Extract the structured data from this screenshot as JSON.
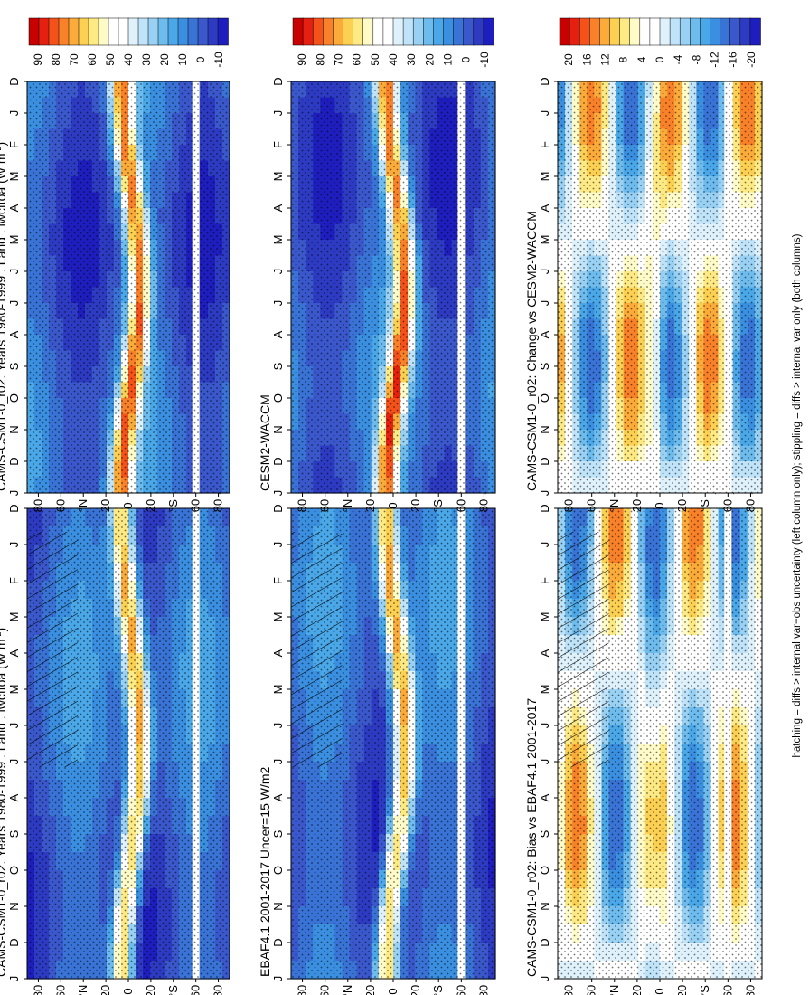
{
  "figure": {
    "footnote": "hatching = diffs > internal var+obs uncertainty (left column only); stippling = diffs > internal var only (both columns)"
  },
  "colorbars": {
    "absolute": {
      "labels": [
        "90",
        "80",
        "70",
        "60",
        "50",
        "40",
        "30",
        "20",
        "10",
        "0",
        "-10"
      ],
      "colors": [
        "#c80000",
        "#e52010",
        "#f4521a",
        "#f8812a",
        "#fbab3a",
        "#fcd053",
        "#fdea84",
        "#fffbc8",
        "#ffffff",
        "#ffffff",
        "#dff2fc",
        "#bfe3f8",
        "#98d1f3",
        "#6ebcee",
        "#4aa7e8",
        "#3b8fe0",
        "#3a73d6",
        "#3a58cb",
        "#2d3bc2",
        "#1d1ebd"
      ]
    },
    "difference": {
      "labels": [
        "20",
        "16",
        "12",
        "8",
        "4",
        "0",
        "-4",
        "-8",
        "-12",
        "-16",
        "-20"
      ],
      "colors": [
        "#c80000",
        "#e52010",
        "#f4521a",
        "#f8812a",
        "#fbab3a",
        "#fcd053",
        "#fdea84",
        "#fffbc8",
        "#ffffff",
        "#ffffff",
        "#dff2fc",
        "#bfe3f8",
        "#98d1f3",
        "#6ebcee",
        "#4aa7e8",
        "#3b8fe0",
        "#3a73d6",
        "#3a58cb",
        "#2d3bc2",
        "#1d1ebd"
      ]
    }
  },
  "chart_data": [
    {
      "type": "heatmap",
      "id": "p1",
      "column": "left",
      "row": 1,
      "scale": "absolute",
      "title": "CAMS-CSM1-0_r02: Years 1980-1999 : Land : lwcftoa (W m",
      "title_sup": "-2",
      "title_close": ")",
      "x": [
        "D",
        "J",
        "F",
        "M",
        "A",
        "M",
        "J",
        "J",
        "A",
        "S",
        "O",
        "N",
        "D",
        "J"
      ],
      "y": [
        "80",
        "60",
        "°N",
        "20",
        "0",
        "20",
        "°S",
        "60",
        "80"
      ],
      "ylim": [
        -90,
        90
      ],
      "hatching": true,
      "stippling": true
    },
    {
      "type": "heatmap",
      "id": "p2",
      "column": "left",
      "row": 2,
      "scale": "absolute",
      "title": "EBAF4.1 2001-2017 Uncer=15 W/m2",
      "x": [
        "D",
        "J",
        "F",
        "M",
        "A",
        "M",
        "J",
        "J",
        "A",
        "S",
        "O",
        "N",
        "D",
        "J"
      ],
      "y": [
        "80",
        "60",
        "°N",
        "20",
        "0",
        "20",
        "°S",
        "60",
        "80"
      ],
      "ylim": [
        -90,
        90
      ],
      "hatching": true,
      "stippling": true
    },
    {
      "type": "heatmap",
      "id": "p3",
      "column": "left",
      "row": 3,
      "scale": "difference",
      "title": "CAMS-CSM1-0_r02: Bias vs EBAF4.1 2001-2017",
      "x": [
        "D",
        "J",
        "F",
        "M",
        "A",
        "M",
        "J",
        "J",
        "A",
        "S",
        "O",
        "N",
        "D",
        "J"
      ],
      "y": [
        "80",
        "60",
        "°N",
        "20",
        "0",
        "20",
        "°S",
        "60",
        "80"
      ],
      "ylim": [
        -90,
        90
      ],
      "hatching": true,
      "stippling": true
    },
    {
      "type": "heatmap",
      "id": "p4",
      "column": "right",
      "row": 1,
      "scale": "absolute",
      "title": "CAMS-CSM1-0_r02: Years 1980-1999 : Land : lwcftoa (W m",
      "title_sup": "-2",
      "title_close": ")",
      "x": [
        "D",
        "J",
        "F",
        "M",
        "A",
        "M",
        "J",
        "J",
        "A",
        "S",
        "O",
        "N",
        "D",
        "J"
      ],
      "y": [
        "80",
        "60",
        "°N",
        "20",
        "0",
        "20",
        "°S",
        "60",
        "80"
      ],
      "ylim": [
        -90,
        90
      ],
      "hatching": false,
      "stippling": true
    },
    {
      "type": "heatmap",
      "id": "p5",
      "column": "right",
      "row": 2,
      "scale": "absolute",
      "title": "CESM2-WACCM",
      "x": [
        "D",
        "J",
        "F",
        "M",
        "A",
        "M",
        "J",
        "J",
        "A",
        "S",
        "O",
        "N",
        "D",
        "J"
      ],
      "y": [
        "80",
        "60",
        "°N",
        "20",
        "0",
        "20",
        "°S",
        "60",
        "80"
      ],
      "ylim": [
        -90,
        90
      ],
      "hatching": false,
      "stippling": true
    },
    {
      "type": "heatmap",
      "id": "p6",
      "column": "right",
      "row": 3,
      "scale": "difference",
      "title": "CAMS-CSM1-0_r02: Change vs CESM2-WACCM",
      "x": [
        "D",
        "J",
        "F",
        "M",
        "A",
        "M",
        "J",
        "J",
        "A",
        "S",
        "O",
        "N",
        "D",
        "J"
      ],
      "y": [
        "80",
        "60",
        "°N",
        "20",
        "0",
        "20",
        "°S",
        "60",
        "80"
      ],
      "ylim": [
        -90,
        90
      ],
      "hatching": false,
      "stippling": true
    }
  ]
}
